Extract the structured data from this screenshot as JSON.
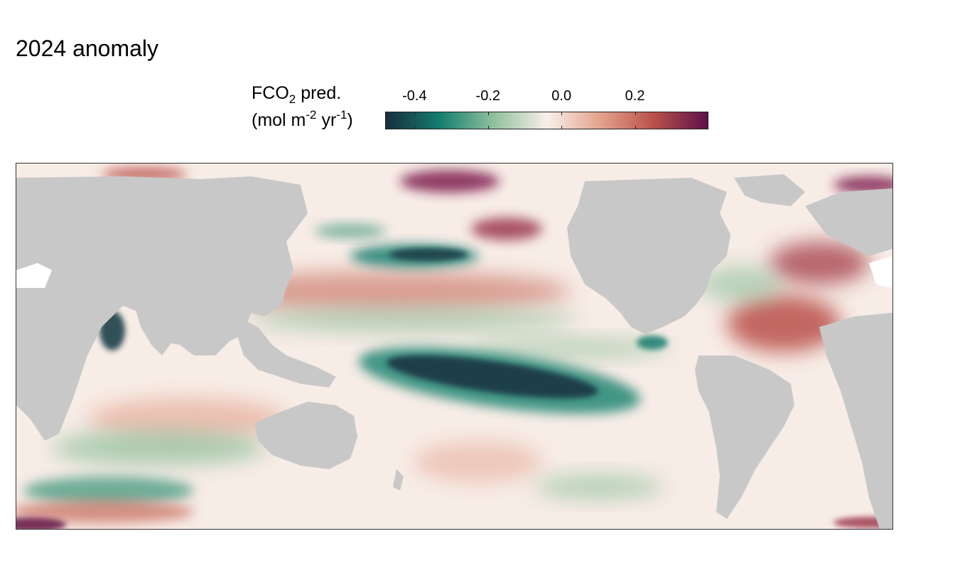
{
  "title": "2024 anomaly",
  "legend": {
    "title_main": "FCO",
    "title_sub": "2",
    "title_after": " pred.",
    "unit_open": "(mol m",
    "unit_exp1": "-2",
    "unit_mid": " yr",
    "unit_exp2": "-1",
    "unit_close": ")",
    "ticks": [
      "-0.4",
      "-0.2",
      "0.0",
      "0.2"
    ],
    "tick_values": [
      -0.4,
      -0.2,
      0.0,
      0.2
    ],
    "range": [
      -0.48,
      0.4
    ],
    "colors": [
      "#182d3e",
      "#137d6e",
      "#8fc09c",
      "#f7efe9",
      "#e3a28c",
      "#b9504a",
      "#5e1048"
    ]
  },
  "map": {
    "land_color": "#c8c8c8",
    "ocean_neutral": "#f7ece6",
    "anomaly_regions": [
      {
        "region": "equatorial-east-pacific",
        "value": -0.45
      },
      {
        "region": "north-pacific-kuroshio",
        "value": -0.35
      },
      {
        "region": "arabian-sea",
        "value": -0.3
      },
      {
        "region": "north-atlantic-subtropical",
        "value": 0.25
      },
      {
        "region": "north-pacific-subpolar",
        "value": 0.3
      },
      {
        "region": "arctic-bering",
        "value": 0.35
      },
      {
        "region": "southern-ocean-indian",
        "value": -0.2
      },
      {
        "region": "south-indian-subtropical",
        "value": 0.12
      }
    ]
  }
}
